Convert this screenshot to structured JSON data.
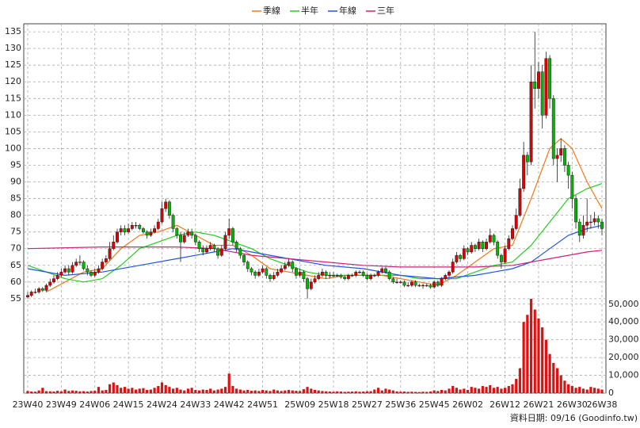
{
  "chart_data": {
    "type": "candlestick",
    "footer": "資料日期: 09/16 (Goodinfo.tw)",
    "categories": [
      "23W40",
      null,
      null,
      null,
      null,
      null,
      null,
      null,
      null,
      "23W49",
      null,
      null,
      null,
      null,
      null,
      null,
      null,
      null,
      "24W06",
      null,
      null,
      null,
      null,
      null,
      null,
      null,
      null,
      "24W15",
      null,
      null,
      null,
      null,
      null,
      null,
      null,
      null,
      "24W24",
      null,
      null,
      null,
      null,
      null,
      null,
      null,
      null,
      "24W33",
      null,
      null,
      null,
      null,
      null,
      null,
      null,
      null,
      "24W42",
      null,
      null,
      null,
      null,
      null,
      null,
      null,
      null,
      "24W51",
      null,
      null,
      null,
      null,
      null,
      null,
      null,
      null,
      null,
      "25W09",
      null,
      null,
      null,
      null,
      null,
      null,
      null,
      null,
      "25W18",
      null,
      null,
      null,
      null,
      null,
      null,
      null,
      null,
      "25W27",
      null,
      null,
      null,
      null,
      null,
      null,
      null,
      null,
      "25W36",
      null,
      null,
      null,
      null,
      null,
      null,
      null,
      null,
      "25W45",
      null,
      null,
      null,
      null,
      null,
      null,
      null,
      null,
      "26W02",
      null,
      null,
      null,
      null,
      null,
      null,
      null,
      null,
      null,
      "26W12",
      null,
      null,
      null,
      null,
      null,
      null,
      null,
      null,
      "26W21",
      null,
      null,
      null,
      null,
      null,
      null,
      null,
      null,
      "26W30",
      null,
      null,
      null,
      null,
      null,
      null,
      null,
      "26W38"
    ],
    "ohlc": [
      [
        55.5,
        57,
        55,
        56
      ],
      [
        56,
        57.5,
        55.5,
        57
      ],
      [
        57,
        58,
        56.5,
        57
      ],
      [
        57,
        58.5,
        56.5,
        58
      ],
      [
        58,
        58.5,
        57,
        57.5
      ],
      [
        57.5,
        59.5,
        57,
        59
      ],
      [
        59,
        61,
        58.5,
        60
      ],
      [
        60,
        62,
        59.5,
        61
      ],
      [
        61,
        63,
        60.5,
        62
      ],
      [
        62,
        64,
        61.5,
        63
      ],
      [
        63,
        65,
        62.5,
        64
      ],
      [
        64,
        65,
        62,
        63
      ],
      [
        63,
        66,
        62.5,
        65
      ],
      [
        65,
        67,
        64.5,
        66
      ],
      [
        66,
        68,
        65,
        66
      ],
      [
        66,
        66.5,
        63.5,
        64
      ],
      [
        64,
        65,
        62,
        63
      ],
      [
        63,
        63.5,
        61.5,
        62
      ],
      [
        62,
        64,
        61.5,
        63
      ],
      [
        63,
        65,
        62.5,
        64
      ],
      [
        64,
        67,
        63.5,
        66
      ],
      [
        66,
        68,
        65.5,
        67
      ],
      [
        67,
        72,
        66.5,
        70
      ],
      [
        70,
        74,
        69.5,
        72
      ],
      [
        72,
        76,
        71.5,
        75
      ],
      [
        75,
        77,
        74,
        76
      ],
      [
        76,
        77,
        74,
        75
      ],
      [
        75,
        77.5,
        74.5,
        76
      ],
      [
        76,
        78,
        75.5,
        77
      ],
      [
        77,
        78,
        76,
        77
      ],
      [
        77,
        77.5,
        75.5,
        76
      ],
      [
        76,
        76.5,
        74.5,
        75
      ],
      [
        75,
        75.5,
        73,
        74
      ],
      [
        74,
        76,
        73.5,
        75
      ],
      [
        75,
        77,
        74.5,
        76
      ],
      [
        76,
        79,
        75.5,
        78
      ],
      [
        78,
        84,
        77.5,
        82
      ],
      [
        82,
        85,
        81,
        84
      ],
      [
        84,
        84.5,
        79,
        80
      ],
      [
        80,
        80.5,
        75,
        76
      ],
      [
        76,
        76.5,
        73,
        74
      ],
      [
        74,
        75,
        66,
        72
      ],
      [
        72,
        75,
        71.5,
        74
      ],
      [
        74,
        76,
        73.5,
        75
      ],
      [
        75,
        76,
        73,
        74
      ],
      [
        74,
        74.5,
        71,
        72
      ],
      [
        72,
        72.5,
        69,
        70
      ],
      [
        70,
        71,
        68,
        69
      ],
      [
        69,
        71,
        68.5,
        70
      ],
      [
        70,
        72,
        69.5,
        71
      ],
      [
        71,
        71.5,
        69,
        70
      ],
      [
        70,
        70.5,
        67,
        68
      ],
      [
        68,
        71,
        67.5,
        70
      ],
      [
        70,
        75,
        69.5,
        74
      ],
      [
        74,
        79,
        73,
        76
      ],
      [
        76,
        76.5,
        71,
        72
      ],
      [
        72,
        72.5,
        69,
        70
      ],
      [
        70,
        70.5,
        67,
        68
      ],
      [
        68,
        68.5,
        65,
        66
      ],
      [
        66,
        66.5,
        63,
        64
      ],
      [
        64,
        64.5,
        62,
        63
      ],
      [
        63,
        63.5,
        61,
        62
      ],
      [
        62,
        64,
        61.5,
        63
      ],
      [
        63,
        65,
        62.5,
        64
      ],
      [
        64,
        64.5,
        61,
        62
      ],
      [
        62,
        62.5,
        60,
        61
      ],
      [
        61,
        63,
        60.5,
        62
      ],
      [
        62,
        64,
        61.5,
        63
      ],
      [
        63,
        65,
        62.5,
        64
      ],
      [
        64,
        66,
        63.5,
        65
      ],
      [
        65,
        67,
        64.5,
        66
      ],
      [
        66,
        66.5,
        63,
        64
      ],
      [
        64,
        64.5,
        61,
        62
      ],
      [
        62,
        64,
        61.5,
        63
      ],
      [
        63,
        63.5,
        60,
        61
      ],
      [
        61,
        61.5,
        55,
        58
      ],
      [
        58,
        61,
        57.5,
        60
      ],
      [
        60,
        62,
        59.5,
        61
      ],
      [
        61,
        63,
        60.5,
        62
      ],
      [
        62,
        64,
        61.5,
        63
      ],
      [
        63,
        63.5,
        61,
        62
      ],
      [
        62,
        63,
        61,
        62
      ],
      [
        62,
        63,
        61.5,
        62
      ],
      [
        62,
        62.5,
        61.5,
        62
      ],
      [
        62,
        62.5,
        61,
        61.5
      ],
      [
        61.5,
        62,
        60.5,
        61
      ],
      [
        61,
        62.5,
        60.5,
        62
      ],
      [
        62,
        62.5,
        61.5,
        62
      ],
      [
        62,
        63.5,
        61.5,
        63
      ],
      [
        63,
        63.5,
        62.5,
        63
      ],
      [
        63,
        63.5,
        61.5,
        62
      ],
      [
        62,
        62.5,
        60.5,
        61
      ],
      [
        61,
        62.5,
        60.5,
        62
      ],
      [
        62,
        62.5,
        61.5,
        62
      ],
      [
        62,
        63.5,
        61.5,
        63
      ],
      [
        63,
        64.5,
        62.5,
        64
      ],
      [
        64,
        64.5,
        62.5,
        63
      ],
      [
        63,
        63.5,
        60.5,
        61
      ],
      [
        61,
        61.5,
        59.5,
        60
      ],
      [
        60,
        61,
        59.5,
        60
      ],
      [
        60,
        60.5,
        59.5,
        60
      ],
      [
        60,
        60.5,
        58.5,
        59
      ],
      [
        59,
        60,
        58.5,
        59
      ],
      [
        59,
        60.5,
        58.5,
        60
      ],
      [
        60,
        60.5,
        58.5,
        59
      ],
      [
        59,
        59.5,
        58.5,
        59
      ],
      [
        59,
        59.5,
        58,
        59
      ],
      [
        59,
        59.5,
        58.5,
        59
      ],
      [
        59,
        59.5,
        58,
        58.5
      ],
      [
        58.5,
        60.5,
        58,
        60
      ],
      [
        60,
        60.5,
        58.5,
        59
      ],
      [
        59,
        61.5,
        58.5,
        61
      ],
      [
        61,
        62.5,
        60.5,
        62
      ],
      [
        62,
        63.5,
        61.5,
        63
      ],
      [
        63,
        67,
        62.5,
        66
      ],
      [
        66,
        69,
        65.5,
        68
      ],
      [
        68,
        68.5,
        66,
        67
      ],
      [
        67,
        71,
        66.5,
        70
      ],
      [
        70,
        70.5,
        68,
        69
      ],
      [
        69,
        72,
        68.5,
        71
      ],
      [
        71,
        71.5,
        69,
        70
      ],
      [
        70,
        73,
        69.5,
        72
      ],
      [
        72,
        72.5,
        69,
        70
      ],
      [
        70,
        73,
        69.5,
        72
      ],
      [
        72,
        76,
        71.5,
        74
      ],
      [
        74,
        74.5,
        71,
        72
      ],
      [
        72,
        72.5,
        67,
        68
      ],
      [
        68,
        68.5,
        64,
        66
      ],
      [
        66,
        71,
        65.5,
        70
      ],
      [
        70,
        74,
        69.5,
        73
      ],
      [
        73,
        77,
        72.5,
        76
      ],
      [
        76,
        82,
        75.5,
        80
      ],
      [
        80,
        91,
        79.5,
        88
      ],
      [
        88,
        102,
        87,
        98
      ],
      [
        98,
        99,
        92,
        96
      ],
      [
        96,
        125,
        95,
        120
      ],
      [
        120,
        135,
        112,
        118
      ],
      [
        118,
        126,
        115,
        123
      ],
      [
        123,
        125,
        106,
        110
      ],
      [
        110,
        129,
        109,
        127
      ],
      [
        127,
        128,
        112,
        115
      ],
      [
        115,
        116,
        95,
        97
      ],
      [
        97,
        100,
        90,
        98
      ],
      [
        98,
        103,
        96,
        100
      ],
      [
        100,
        101,
        93,
        95
      ],
      [
        95,
        96,
        88,
        92
      ],
      [
        92,
        93,
        82,
        85
      ],
      [
        85,
        86,
        76,
        78
      ],
      [
        78,
        79,
        72,
        74
      ],
      [
        74,
        80,
        73,
        77
      ],
      [
        77,
        85,
        75,
        78
      ],
      [
        78,
        80,
        76,
        78
      ],
      [
        78,
        81,
        77,
        79
      ],
      [
        79,
        80,
        76,
        78
      ],
      [
        78,
        79,
        74,
        76
      ]
    ],
    "volume": [
      1200,
      900,
      800,
      1500,
      3000,
      1100,
      1000,
      900,
      1300,
      1000,
      2000,
      1200,
      1500,
      1300,
      1000,
      1100,
      900,
      1200,
      1300,
      3500,
      1500,
      1800,
      5000,
      6000,
      4500,
      3000,
      3500,
      2500,
      3000,
      2000,
      2500,
      2800,
      1800,
      2000,
      3000,
      4000,
      6000,
      4500,
      3500,
      2500,
      3000,
      2000,
      1500,
      2500,
      3000,
      1800,
      1500,
      2000,
      1800,
      2500,
      1500,
      2000,
      2500,
      3500,
      11000,
      4000,
      2500,
      2000,
      1500,
      1800,
      1300,
      1500,
      1200,
      1800,
      1500,
      1200,
      2000,
      1500,
      1200,
      1500,
      1800,
      1500,
      1300,
      1200,
      2200,
      3500,
      2500,
      1800,
      1500,
      1200,
      1000,
      900,
      800,
      1000,
      900,
      700,
      800,
      900,
      1000,
      800,
      900,
      1000,
      1100,
      2000,
      3000,
      1500,
      2500,
      2000,
      1500,
      1000,
      800,
      900,
      700,
      800,
      700,
      600,
      800,
      700,
      900,
      1500,
      1200,
      1800,
      1500,
      2500,
      4000,
      3000,
      2000,
      2500,
      1800,
      3500,
      3000,
      2500,
      4000,
      3500,
      4500,
      3000,
      3500,
      2500,
      3000,
      4000,
      5000,
      8000,
      14000,
      40000,
      44000,
      53000,
      47000,
      42000,
      37000,
      30000,
      22000,
      17000,
      14000,
      10000,
      7000,
      5000,
      4000,
      3000,
      3500,
      2500,
      2000,
      3500,
      3000,
      2500,
      2000
    ],
    "up_color": "#e00000",
    "down_color": "#00b800",
    "volume_color": "#dd1111",
    "ma_series": [
      {
        "name": "季線",
        "color": "#f07a1a",
        "x": [
          5,
          10,
          15,
          20,
          25,
          30,
          35,
          40,
          45,
          50,
          55,
          60,
          65,
          70,
          75,
          80,
          85,
          90,
          95,
          100,
          105,
          110,
          115,
          120,
          125,
          130,
          135,
          140,
          143,
          146,
          150,
          154
        ],
        "values": [
          57,
          60,
          63,
          64,
          70,
          74,
          75,
          77,
          74,
          71,
          71,
          68,
          64,
          63,
          62,
          61,
          62,
          62,
          62,
          61,
          60,
          59,
          62,
          66,
          70,
          71,
          85,
          100,
          103,
          100,
          90,
          82
        ]
      },
      {
        "name": "半年",
        "color": "#22cc22",
        "x": [
          0,
          5,
          10,
          15,
          20,
          25,
          30,
          35,
          40,
          45,
          50,
          55,
          60,
          65,
          70,
          75,
          80,
          85,
          90,
          95,
          100,
          105,
          110,
          115,
          120,
          125,
          130,
          135,
          140,
          145,
          150,
          154
        ],
        "values": [
          65,
          63,
          61,
          60,
          61,
          65,
          70,
          72,
          74,
          75,
          74,
          72,
          70,
          67,
          65,
          63,
          62,
          62,
          62,
          62,
          62,
          61,
          61,
          61,
          63,
          65,
          66,
          71,
          78,
          85,
          88,
          89.5
        ]
      },
      {
        "name": "年線",
        "color": "#2255dd",
        "x": [
          0,
          10,
          20,
          30,
          40,
          50,
          55,
          60,
          70,
          80,
          90,
          100,
          110,
          120,
          125,
          130,
          135,
          140,
          145,
          150,
          154
        ],
        "values": [
          64,
          62,
          63,
          65,
          67,
          69,
          70,
          69,
          67,
          65,
          64,
          62,
          61,
          62,
          63,
          64,
          66,
          70,
          74,
          76,
          77
        ]
      },
      {
        "name": "三年",
        "color": "#cc2277",
        "x": [
          0,
          20,
          40,
          50,
          60,
          70,
          80,
          90,
          100,
          110,
          120,
          130,
          140,
          150,
          154
        ],
        "values": [
          70,
          70.5,
          70.5,
          70,
          68,
          67,
          66,
          65,
          64.5,
          64.5,
          64.5,
          65,
          67,
          69,
          69.5
        ]
      }
    ],
    "ylim": [
      26.7,
      137.4
    ],
    "yticks": [
      55,
      60,
      65,
      70,
      75,
      80,
      85,
      90,
      95,
      100,
      105,
      110,
      115,
      120,
      125,
      130,
      135
    ],
    "y2lim": [
      0,
      207600
    ],
    "y2ticks": [
      0,
      {
        "value": 10000,
        "label": "10,000"
      },
      {
        "value": 20000,
        "label": "20,000"
      },
      {
        "value": 30000,
        "label": "30,000"
      },
      {
        "value": 40000,
        "label": "40,000"
      },
      {
        "value": 50000,
        "label": "50,000"
      }
    ],
    "grid": true
  }
}
